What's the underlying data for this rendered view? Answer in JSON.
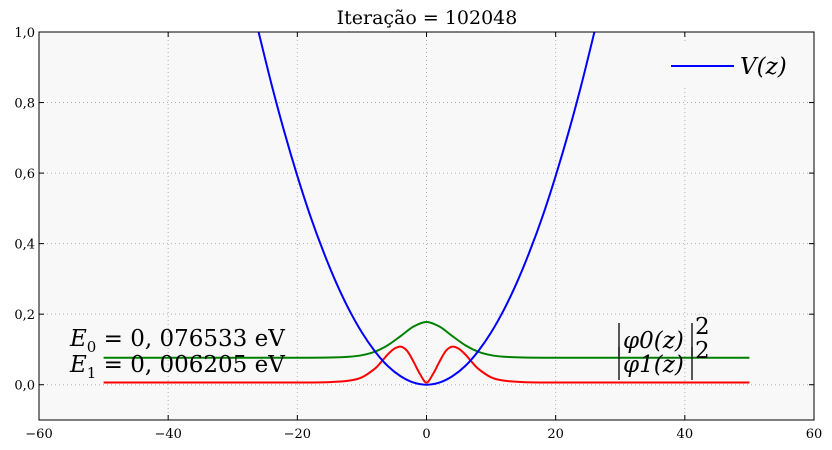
{
  "chart_data": {
    "type": "line",
    "title": "Iteração = 102048",
    "xlabel": "",
    "ylabel": "",
    "xlim": [
      -60,
      60
    ],
    "ylim": [
      -0.1,
      1.0
    ],
    "xticks": [
      -60,
      -40,
      -20,
      0,
      20,
      40,
      60
    ],
    "xtick_labels": [
      "−60",
      "−40",
      "−20",
      "0",
      "20",
      "40",
      "60"
    ],
    "yticks": [
      0.0,
      0.2,
      0.4,
      0.6,
      0.8,
      1.0
    ],
    "ytick_labels": [
      "0,0",
      "0,2",
      "0,4",
      "0,6",
      "0,8",
      "1,0"
    ],
    "grid": true,
    "background": "#f8f8f8",
    "series": [
      {
        "name": "V(z)",
        "color": "#0000ff",
        "description_formula": "potential",
        "x": [
          -26,
          -24,
          -22,
          -20,
          -18,
          -16,
          -14,
          -12,
          -10,
          -8,
          -6,
          -4,
          -2,
          0,
          2,
          4,
          6,
          8,
          10,
          12,
          14,
          16,
          18,
          20,
          22,
          24,
          26
        ],
        "y": [
          1.0,
          0.852,
          0.716,
          0.592,
          0.479,
          0.379,
          0.29,
          0.213,
          0.148,
          0.095,
          0.053,
          0.024,
          0.006,
          0.0,
          0.006,
          0.024,
          0.053,
          0.095,
          0.148,
          0.213,
          0.29,
          0.379,
          0.479,
          0.592,
          0.716,
          0.852,
          1.0
        ]
      },
      {
        "name": "|φ0(z)|²",
        "color": "#008000",
        "x": [
          -50,
          -40,
          -30,
          -20,
          -15,
          -12,
          -10,
          -8,
          -6,
          -4,
          -2,
          0,
          2,
          4,
          6,
          8,
          10,
          12,
          15,
          20,
          30,
          40,
          50
        ],
        "y": [
          0.0765,
          0.0765,
          0.0765,
          0.0766,
          0.0773,
          0.0794,
          0.0837,
          0.0937,
          0.112,
          0.138,
          0.165,
          0.178,
          0.165,
          0.138,
          0.112,
          0.0937,
          0.0837,
          0.0794,
          0.0773,
          0.0766,
          0.0765,
          0.0765,
          0.0765
        ]
      },
      {
        "name": "|φ1(z)|²",
        "color": "#ff0000",
        "x": [
          -50,
          -30,
          -20,
          -15,
          -12,
          -10,
          -8,
          -7,
          -6,
          -5,
          -4,
          -3,
          -2,
          -1,
          0,
          1,
          2,
          3,
          4,
          5,
          6,
          7,
          8,
          10,
          12,
          15,
          20,
          30,
          50
        ],
        "y": [
          0.0062,
          0.0062,
          0.0063,
          0.0075,
          0.0115,
          0.021,
          0.0455,
          0.065,
          0.086,
          0.102,
          0.108,
          0.096,
          0.065,
          0.03,
          0.0062,
          0.03,
          0.065,
          0.096,
          0.108,
          0.102,
          0.086,
          0.065,
          0.0455,
          0.021,
          0.0115,
          0.0075,
          0.0063,
          0.0062,
          0.0062
        ]
      }
    ],
    "legend": {
      "placement": "top-right",
      "entries": [
        {
          "label": "V(z)",
          "color": "#0000ff"
        }
      ]
    },
    "annotations": {
      "E0_symbol": "E",
      "E0_sub": "0",
      "E0_value": " = 0, 076533 eV",
      "E1_symbol": "E",
      "E1_sub": "1",
      "E1_value": " = 0, 006205 eV",
      "phi0_label": "φ0(z)",
      "phi0_sup": "2",
      "phi1_label": "φ1(z)",
      "phi1_sup": "2"
    }
  }
}
